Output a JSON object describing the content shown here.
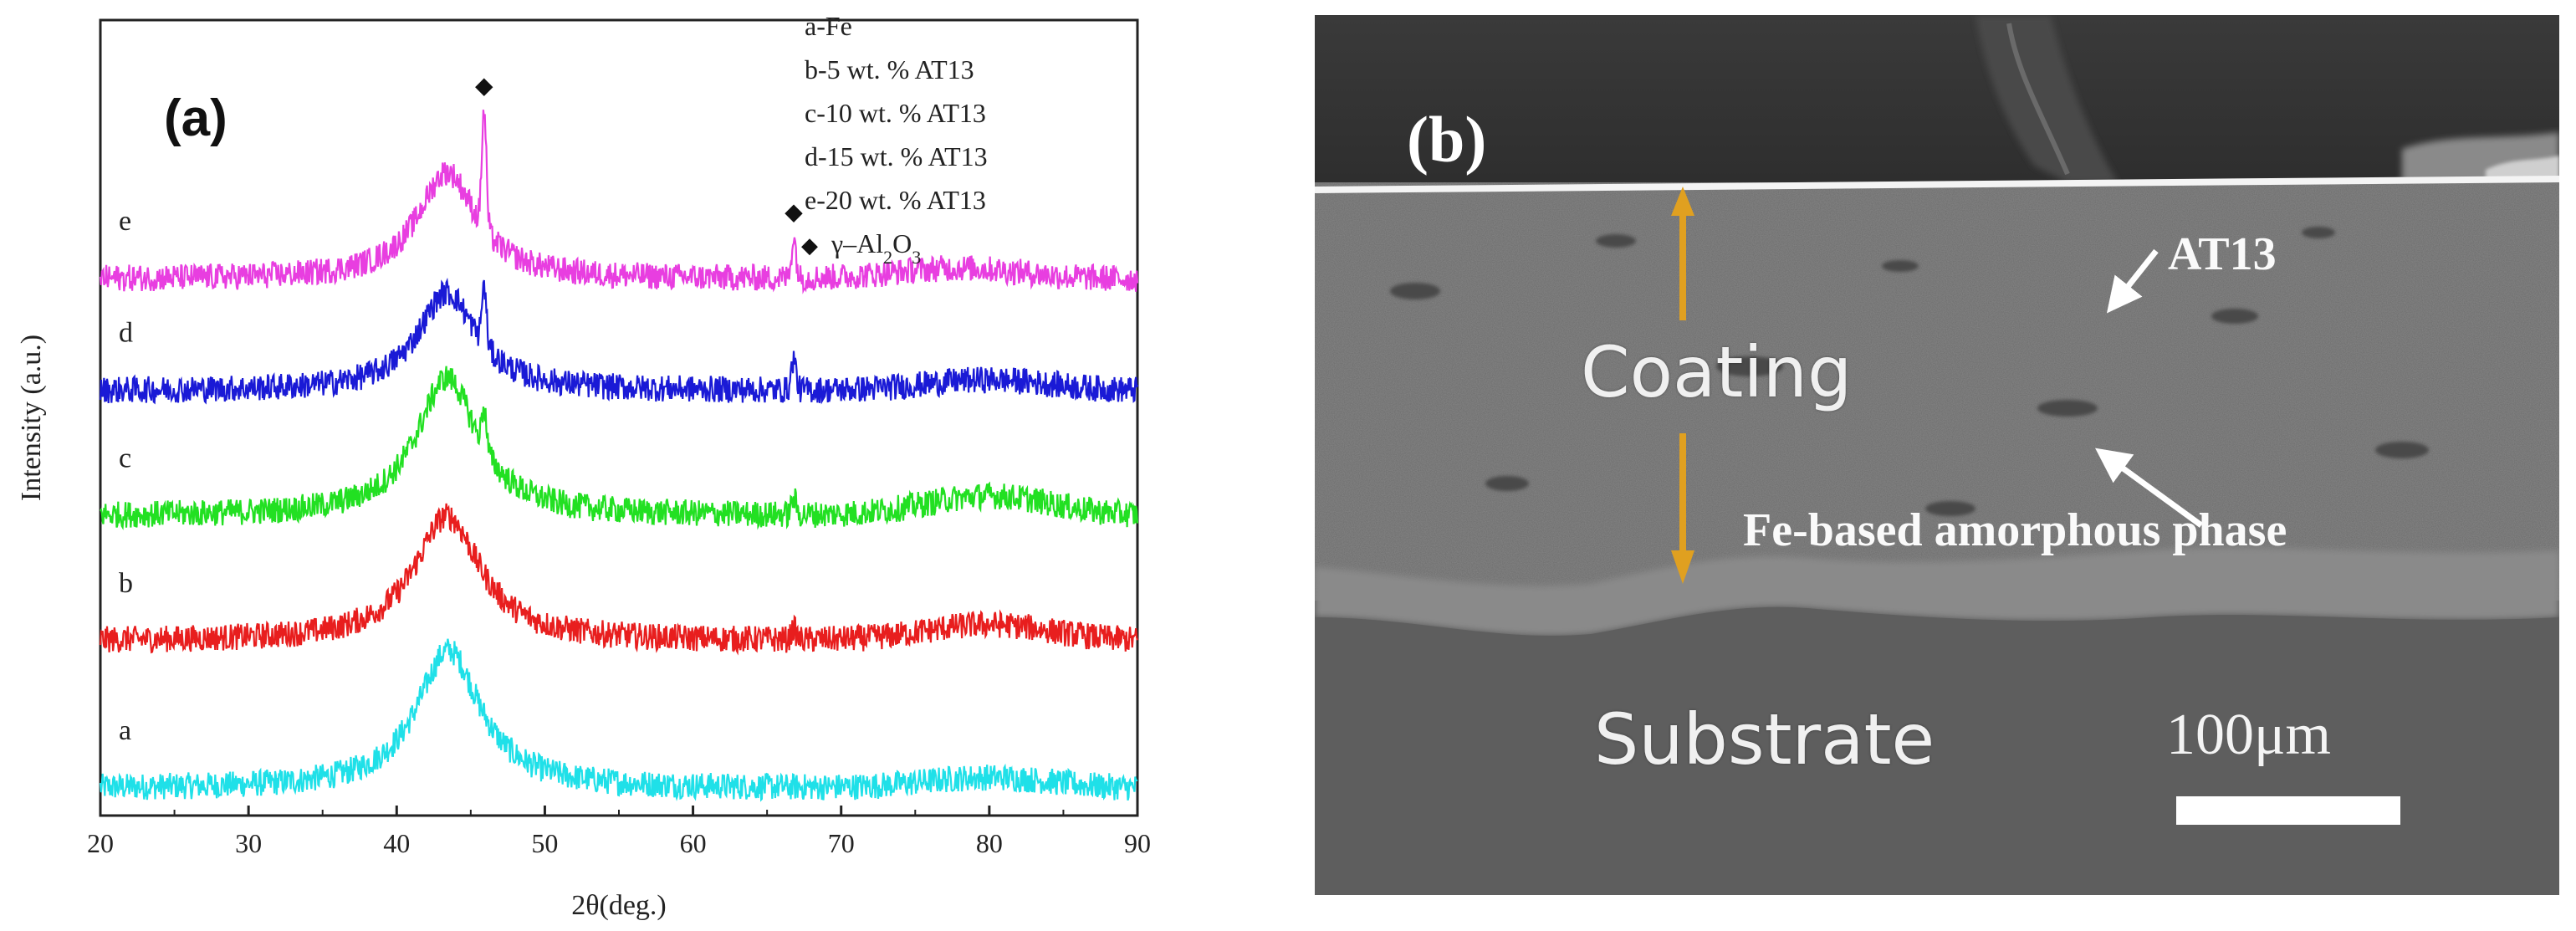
{
  "figure": {
    "panel_a_label": "(a)",
    "panel_b_label": "(b)"
  },
  "chart_data": {
    "type": "line",
    "title": "",
    "xlabel": "2θ(deg.)",
    "ylabel": "Intensity (a.u.)",
    "xlim": [
      20,
      90
    ],
    "x_ticks": [
      20,
      30,
      40,
      50,
      60,
      70,
      80,
      90
    ],
    "y_ticks_visible": false,
    "legend_position": "top-right",
    "legend": [
      "a-Fe",
      "b-5 wt. % AT13",
      "c-10 wt. % AT13",
      "d-15 wt. % AT13",
      "e-20 wt. % AT13"
    ],
    "marker_legend": {
      "symbol": "◆",
      "label_prefix": "γ–Al",
      "label_sub1": "2",
      "label_mid": "O",
      "label_sub2": "3"
    },
    "peak_markers": [
      {
        "symbol": "◆",
        "x": 45.9,
        "series": "e"
      },
      {
        "symbol": "◆",
        "x": 66.8,
        "series": "e"
      }
    ],
    "series": [
      {
        "name": "a",
        "label": "a",
        "color": "#1fe0e8",
        "baseline": 0.0,
        "broad_peak": {
          "center": 43.5,
          "height": 1.55,
          "width": 2.6
        },
        "sharp_peaks": [],
        "hump": {
          "center": 80,
          "height": 0.12,
          "width": 6
        }
      },
      {
        "name": "b",
        "label": "b",
        "color": "#e81e1e",
        "baseline": 1.65,
        "broad_peak": {
          "center": 43.4,
          "height": 1.4,
          "width": 2.7
        },
        "sharp_peaks": [
          {
            "center": 66.8,
            "height": 0.12
          }
        ],
        "hump": {
          "center": 80,
          "height": 0.18,
          "width": 6
        }
      },
      {
        "name": "c",
        "label": "c",
        "color": "#22e022",
        "baseline": 3.05,
        "broad_peak": {
          "center": 43.4,
          "height": 1.55,
          "width": 2.5
        },
        "sharp_peaks": [
          {
            "center": 45.9,
            "height": 0.45
          },
          {
            "center": 66.8,
            "height": 0.18
          }
        ],
        "hump": {
          "center": 80,
          "height": 0.22,
          "width": 6
        }
      },
      {
        "name": "d",
        "label": "d",
        "color": "#1a1ad6",
        "baseline": 4.45,
        "broad_peak": {
          "center": 43.4,
          "height": 1.1,
          "width": 2.4
        },
        "sharp_peaks": [
          {
            "center": 45.9,
            "height": 0.65
          },
          {
            "center": 66.8,
            "height": 0.35
          }
        ],
        "hump": {
          "center": 80,
          "height": 0.12,
          "width": 6
        }
      },
      {
        "name": "e",
        "label": "e",
        "color": "#e83ee0",
        "baseline": 5.7,
        "broad_peak": {
          "center": 43.4,
          "height": 1.2,
          "width": 2.4
        },
        "sharp_peaks": [
          {
            "center": 45.9,
            "height": 1.3
          },
          {
            "center": 66.8,
            "height": 0.45
          }
        ],
        "hump": {
          "center": 78,
          "height": 0.12,
          "width": 6
        }
      }
    ],
    "ylim": [
      -0.3,
      8.6
    ]
  },
  "sem": {
    "coating_label": "Coating",
    "substrate_label": "Substrate",
    "at13_label": "AT13",
    "amorphous_label": "Fe-based amorphous phase",
    "scale_label": "100μm",
    "arrow_color": "#e0a020"
  }
}
